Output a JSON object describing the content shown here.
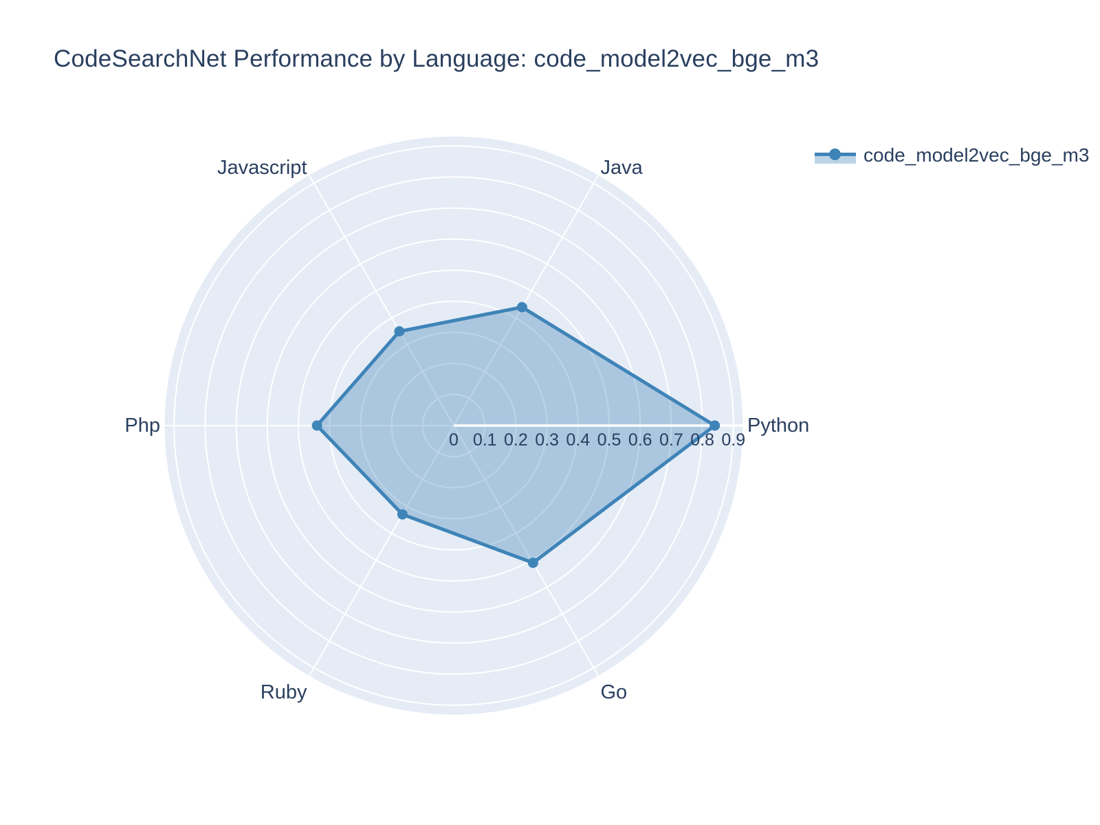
{
  "title": "CodeSearchNet Performance by Language: code_model2vec_bge_m3",
  "legend": {
    "series_label": "code_model2vec_bge_m3"
  },
  "colors": {
    "text": "#2a3f5f",
    "line": "#3f84b8",
    "fill": "rgba(63,132,184,0.35)",
    "polar_background": "#e5ecf6",
    "grid": "#ffffff",
    "page_background": "#ffffff"
  },
  "chart_data": {
    "type": "radar",
    "title": "CodeSearchNet Performance by Language: code_model2vec_bge_m3",
    "categories": [
      "Python",
      "Java",
      "Javascript",
      "Php",
      "Ruby",
      "Go"
    ],
    "series": [
      {
        "name": "code_model2vec_bge_m3",
        "values": [
          0.84,
          0.44,
          0.35,
          0.44,
          0.33,
          0.51
        ]
      }
    ],
    "radial_ticks": [
      "0",
      "0.1",
      "0.2",
      "0.3",
      "0.4",
      "0.5",
      "0.6",
      "0.7",
      "0.8",
      "0.9"
    ],
    "radial_range": [
      0,
      0.93
    ],
    "angular_start_deg": 0,
    "direction": "counterclockwise",
    "grid": true,
    "legend_position": "top-right"
  }
}
